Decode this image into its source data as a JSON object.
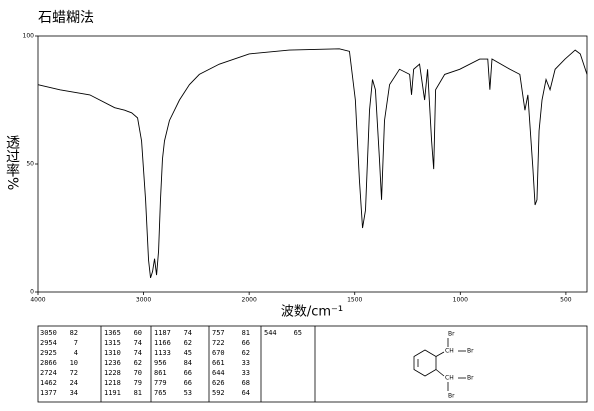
{
  "chart_data": {
    "type": "line",
    "title": "石蜡糊法",
    "x_label": "波数/cm⁻¹",
    "y_label": "透过率%",
    "xlim": [
      4000,
      400
    ],
    "xticks": [
      4000,
      3000,
      2000,
      1500,
      1000,
      500
    ],
    "ylim": [
      0,
      100
    ],
    "yticks": [
      0,
      50,
      100
    ],
    "color": "#000000",
    "x": [
      4000,
      3792,
      3509,
      3274,
      3179,
      3113,
      3057,
      3019,
      2981,
      2953,
      2934,
      2915,
      2896,
      2877,
      2858,
      2840,
      2821,
      2802,
      2755,
      2660,
      2566,
      2472,
      2283,
      2000,
      1810,
      1573,
      1525,
      1497,
      1478,
      1463,
      1449,
      1430,
      1416,
      1402,
      1383,
      1373,
      1359,
      1335,
      1288,
      1240,
      1231,
      1221,
      1193,
      1169,
      1155,
      1136,
      1126,
      1117,
      1074,
      1003,
      908,
      870,
      860,
      850,
      765,
      718,
      694,
      680,
      656,
      646,
      637,
      627,
      613,
      594,
      575,
      551,
      504,
      456,
      432,
      400
    ],
    "values": [
      81,
      79,
      77,
      72,
      71,
      70,
      68,
      59,
      36,
      12.5,
      5.5,
      8,
      13,
      6.6,
      16,
      36,
      52,
      59,
      67,
      75,
      81,
      85,
      89,
      93,
      94.5,
      95,
      94,
      75,
      44,
      25,
      32,
      71,
      83,
      79,
      52,
      36,
      67,
      81,
      87,
      85,
      77,
      87,
      89,
      75,
      87,
      59,
      48,
      79,
      85,
      87,
      91,
      91,
      79,
      91,
      87,
      85,
      71,
      77,
      48,
      34,
      36,
      63,
      75,
      83,
      79,
      87,
      91,
      94.5,
      93,
      85
    ]
  },
  "table": {
    "columns": [
      [
        [
          3050,
          82
        ],
        [
          2954,
          7
        ],
        [
          2925,
          4
        ],
        [
          2866,
          10
        ],
        [
          2724,
          72
        ],
        [
          1462,
          24
        ],
        [
          1377,
          34
        ]
      ],
      [
        [
          1365,
          60
        ],
        [
          1315,
          74
        ],
        [
          1310,
          74
        ],
        [
          1236,
          62
        ],
        [
          1228,
          70
        ],
        [
          1218,
          79
        ],
        [
          1191,
          81
        ]
      ],
      [
        [
          1187,
          74
        ],
        [
          1166,
          62
        ],
        [
          1133,
          45
        ],
        [
          956,
          84
        ],
        [
          861,
          66
        ],
        [
          779,
          66
        ],
        [
          765,
          53
        ]
      ],
      [
        [
          757,
          81
        ],
        [
          722,
          66
        ],
        [
          670,
          62
        ],
        [
          661,
          33
        ],
        [
          644,
          33
        ],
        [
          626,
          68
        ],
        [
          592,
          64
        ]
      ],
      [
        [
          544,
          65
        ]
      ]
    ]
  },
  "structure": {
    "labels": [
      "Br",
      "CH",
      "Br",
      "CH",
      "Br",
      "Br"
    ]
  }
}
